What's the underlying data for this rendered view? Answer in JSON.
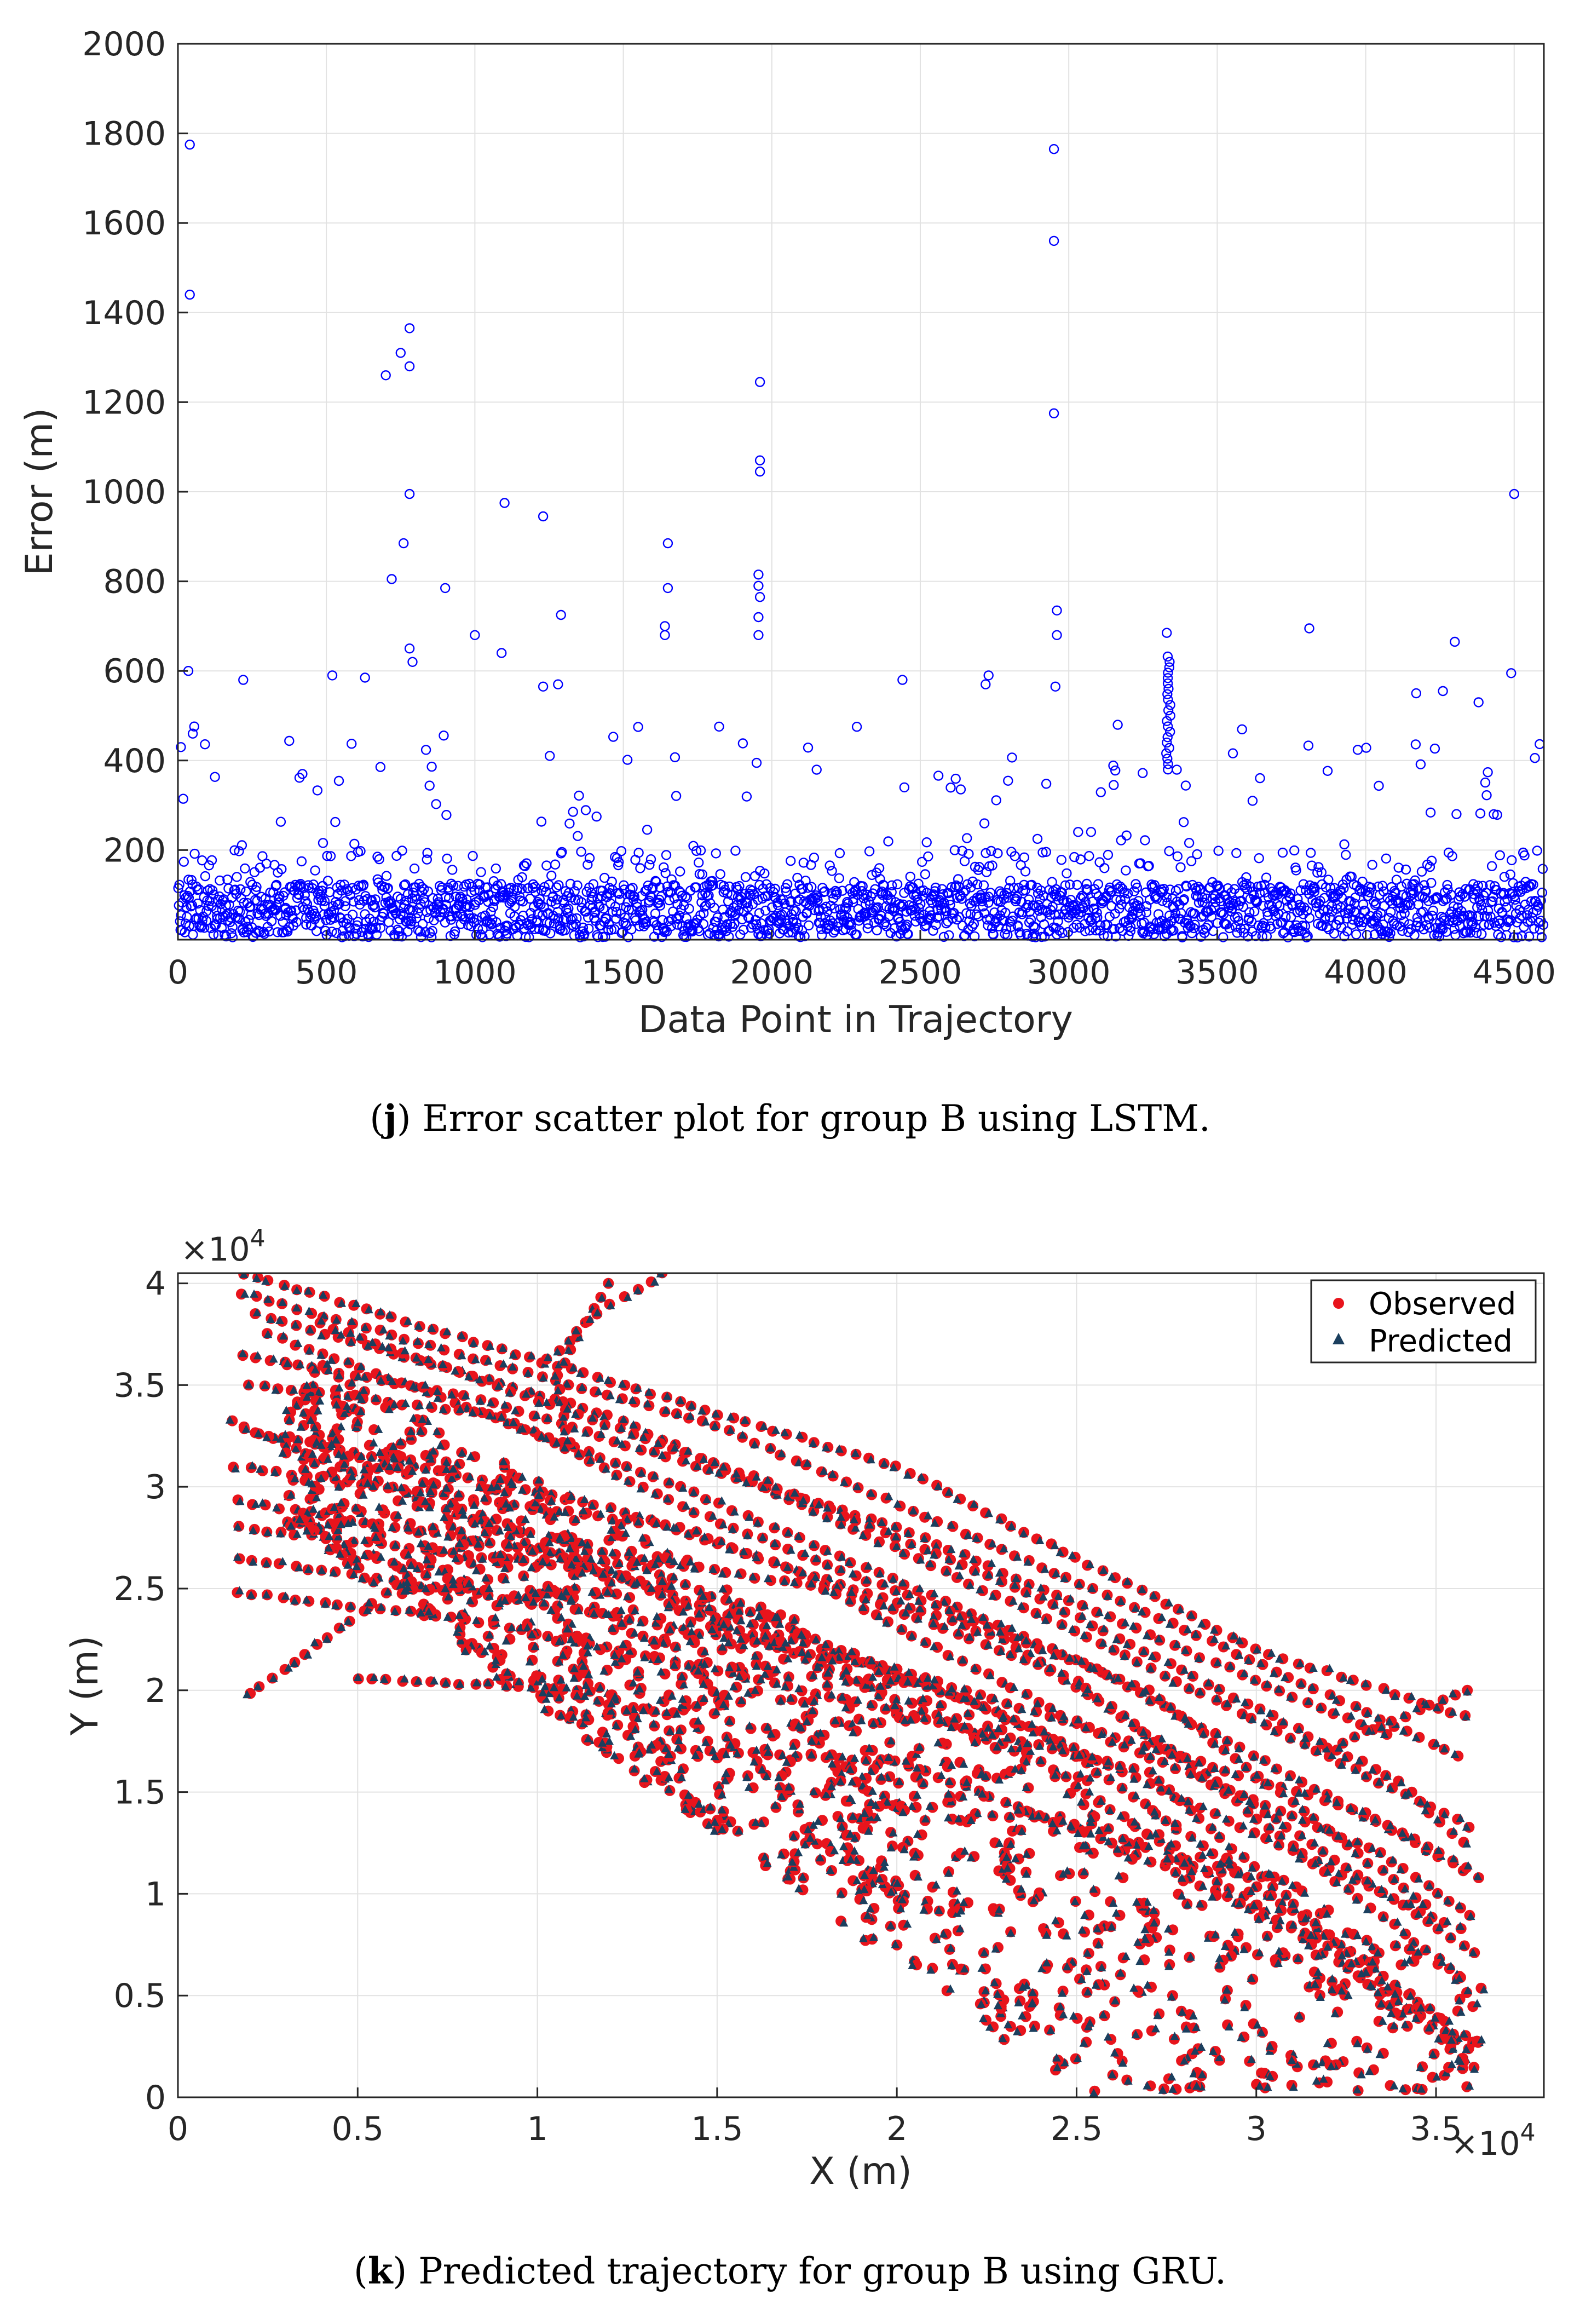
{
  "colors": {
    "scatter_marker": "#0000ff",
    "observed": "#e8141c",
    "predicted": "#1b3f5e",
    "axis": "#262626",
    "grid": "#e2e2e2"
  },
  "chart_data": [
    {
      "id": "j",
      "type": "scatter",
      "caption_letter": "j",
      "caption_text": ") Error scatter plot for group B using LSTM.",
      "caption_open": "(",
      "xlabel": "Data Point in Trajectory",
      "ylabel": "Error (m)",
      "xlim": [
        0,
        4600
      ],
      "ylim": [
        0,
        2000
      ],
      "xticks": [
        0,
        500,
        1000,
        1500,
        2000,
        2500,
        3000,
        3500,
        4000,
        4500
      ],
      "yticks": [
        200,
        400,
        600,
        800,
        1000,
        1200,
        1400,
        1600,
        1800,
        2000
      ],
      "marker": "open-circle",
      "grid": true,
      "outliers": [
        {
          "x": 40,
          "y": 1775
        },
        {
          "x": 40,
          "y": 1440
        },
        {
          "x": 35,
          "y": 600
        },
        {
          "x": 50,
          "y": 460
        },
        {
          "x": 10,
          "y": 430
        },
        {
          "x": 700,
          "y": 1260
        },
        {
          "x": 750,
          "y": 1310
        },
        {
          "x": 780,
          "y": 1365
        },
        {
          "x": 780,
          "y": 1280
        },
        {
          "x": 780,
          "y": 995
        },
        {
          "x": 760,
          "y": 885
        },
        {
          "x": 720,
          "y": 805
        },
        {
          "x": 900,
          "y": 785
        },
        {
          "x": 1100,
          "y": 975
        },
        {
          "x": 1230,
          "y": 945
        },
        {
          "x": 1290,
          "y": 725
        },
        {
          "x": 1000,
          "y": 680
        },
        {
          "x": 1650,
          "y": 885
        },
        {
          "x": 1650,
          "y": 785
        },
        {
          "x": 1640,
          "y": 700
        },
        {
          "x": 1640,
          "y": 680
        },
        {
          "x": 1960,
          "y": 1245
        },
        {
          "x": 1960,
          "y": 1070
        },
        {
          "x": 1960,
          "y": 1045
        },
        {
          "x": 1955,
          "y": 815
        },
        {
          "x": 1955,
          "y": 790
        },
        {
          "x": 1960,
          "y": 765
        },
        {
          "x": 1955,
          "y": 720
        },
        {
          "x": 1955,
          "y": 680
        },
        {
          "x": 2950,
          "y": 1765
        },
        {
          "x": 2950,
          "y": 1560
        },
        {
          "x": 2950,
          "y": 1175
        },
        {
          "x": 2960,
          "y": 735
        },
        {
          "x": 2960,
          "y": 680
        },
        {
          "x": 2955,
          "y": 565
        },
        {
          "x": 3810,
          "y": 695
        },
        {
          "x": 4300,
          "y": 665
        },
        {
          "x": 4500,
          "y": 995
        },
        {
          "x": 4490,
          "y": 595
        },
        {
          "x": 2440,
          "y": 580
        },
        {
          "x": 2730,
          "y": 590
        },
        {
          "x": 2720,
          "y": 570
        },
        {
          "x": 220,
          "y": 580
        },
        {
          "x": 520,
          "y": 590
        },
        {
          "x": 630,
          "y": 585
        },
        {
          "x": 1230,
          "y": 565
        },
        {
          "x": 1280,
          "y": 570
        },
        {
          "x": 4170,
          "y": 550
        },
        {
          "x": 4260,
          "y": 555
        },
        {
          "x": 4380,
          "y": 530
        },
        {
          "x": 1090,
          "y": 640
        },
        {
          "x": 780,
          "y": 650
        },
        {
          "x": 790,
          "y": 620
        },
        {
          "x": 3330,
          "y": 685
        }
      ],
      "column_cluster": {
        "x": 3335,
        "ymin": 380,
        "ymax": 640
      },
      "dense_band": {
        "ymin": 5,
        "ymax": 200,
        "sparse_max": 500
      }
    },
    {
      "id": "k",
      "type": "scatter",
      "caption_letter": "k",
      "caption_text": ") Predicted trajectory for group B using GRU.",
      "caption_open": "(",
      "xlabel": "X (m)",
      "ylabel": "Y (m)",
      "x_multiplier": "×10",
      "y_multiplier": "×10",
      "multiplier_exp": "4",
      "xlim": [
        0,
        38000
      ],
      "ylim": [
        0,
        40500
      ],
      "xticks": [
        0,
        0.5,
        1,
        1.5,
        2,
        2.5,
        3,
        3.5
      ],
      "yticks": [
        0,
        0.5,
        1,
        1.5,
        2,
        2.5,
        3,
        3.5,
        4
      ],
      "tick_scale": 10000,
      "grid": true,
      "legend_position": "top-right",
      "series": [
        {
          "name": "Observed",
          "marker": "filled-circle"
        },
        {
          "name": "Predicted",
          "marker": "filled-triangle"
        }
      ],
      "tracks": [
        [
          [
            1800,
            40500
          ],
          [
            20000,
            31000
          ],
          [
            30000,
            22000
          ],
          [
            36200,
            18500
          ]
        ],
        [
          [
            1800,
            39500
          ],
          [
            15000,
            33000
          ],
          [
            28000,
            23000
          ],
          [
            36000,
            16500
          ]
        ],
        [
          [
            2200,
            38500
          ],
          [
            12000,
            33500
          ],
          [
            26000,
            22000
          ],
          [
            36300,
            13000
          ]
        ],
        [
          [
            2500,
            37500
          ],
          [
            14000,
            30000
          ],
          [
            25000,
            21500
          ],
          [
            36500,
            10500
          ]
        ],
        [
          [
            1500,
            33200
          ],
          [
            10000,
            27000
          ],
          [
            22000,
            19500
          ],
          [
            36000,
            8000
          ]
        ],
        [
          [
            1800,
            32800
          ],
          [
            12000,
            29000
          ],
          [
            23000,
            22500
          ],
          [
            36400,
            6700
          ]
        ],
        [
          [
            1600,
            31000
          ],
          [
            14000,
            28000
          ],
          [
            25000,
            20500
          ],
          [
            36000,
            5500
          ]
        ],
        [
          [
            1700,
            29300
          ],
          [
            13000,
            26000
          ],
          [
            24000,
            18000
          ],
          [
            35500,
            3500
          ]
        ],
        [
          [
            1700,
            28000
          ],
          [
            12000,
            25800
          ],
          [
            24000,
            16500
          ],
          [
            36200,
            2000
          ]
        ],
        [
          [
            1700,
            26500
          ],
          [
            11000,
            24000
          ],
          [
            20000,
            21000
          ],
          [
            33000,
            14000
          ],
          [
            36200,
            11000
          ]
        ],
        [
          [
            1700,
            24800
          ],
          [
            8000,
            23500
          ],
          [
            15000,
            21000
          ],
          [
            27000,
            16000
          ],
          [
            36000,
            1500
          ]
        ],
        [
          [
            2000,
            35000
          ],
          [
            9000,
            33500
          ],
          [
            14000,
            29000
          ],
          [
            27000,
            20000
          ],
          [
            35000,
            9000
          ]
        ],
        [
          [
            1800,
            36500
          ],
          [
            8000,
            34500
          ],
          [
            20000,
            28000
          ],
          [
            34000,
            17500
          ]
        ],
        [
          [
            5000,
            20600
          ],
          [
            9500,
            20200
          ],
          [
            11500,
            20000
          ],
          [
            12800,
            17200
          ],
          [
            20000,
            16500
          ],
          [
            26000,
            12500
          ],
          [
            32000,
            7500
          ],
          [
            34500,
            3000
          ]
        ],
        [
          [
            12000,
            40000
          ],
          [
            10500,
            35500
          ],
          [
            11000,
            31500
          ]
        ],
        [
          [
            2000,
            19800
          ],
          [
            4500,
            23000
          ],
          [
            7000,
            26500
          ],
          [
            9000,
            28000
          ]
        ],
        [
          [
            13500,
            40500
          ],
          [
            12000,
            39000
          ],
          [
            10000,
            35800
          ]
        ],
        [
          [
            32000,
            17200
          ],
          [
            34500,
            19000
          ],
          [
            36200,
            20300
          ]
        ],
        [
          [
            11000,
            27000
          ],
          [
            18000,
            25000
          ],
          [
            26000,
            17500
          ],
          [
            33500,
            12000
          ],
          [
            36300,
            8500
          ]
        ],
        [
          [
            4000,
            38000
          ],
          [
            16000,
            30500
          ],
          [
            24000,
            24500
          ],
          [
            34000,
            15500
          ],
          [
            36000,
            12000
          ]
        ]
      ]
    }
  ]
}
